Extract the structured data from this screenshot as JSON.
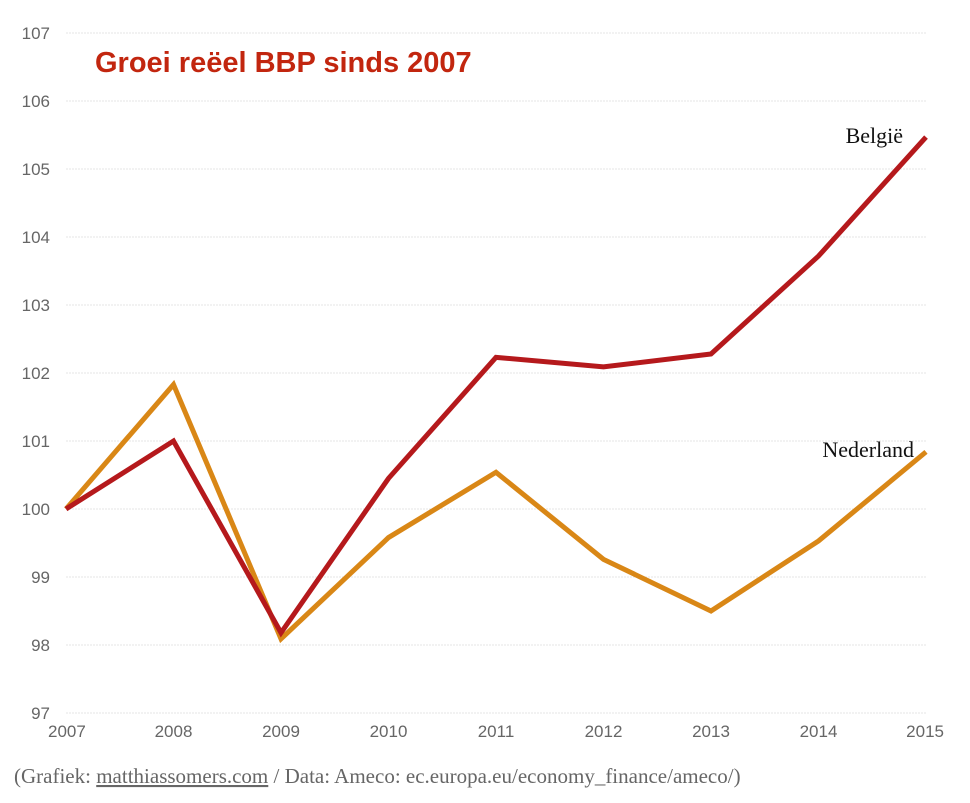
{
  "chart_data": {
    "type": "line",
    "title": "Groei reëel BBP sinds 2007",
    "x": [
      "2007",
      "2008",
      "2009",
      "2010",
      "2011",
      "2012",
      "2013",
      "2014",
      "2015"
    ],
    "ylim": [
      97,
      107
    ],
    "yticks": [
      "97",
      "98",
      "99",
      "100",
      "101",
      "102",
      "103",
      "104",
      "105",
      "106",
      "107"
    ],
    "grid": true,
    "series": [
      {
        "name": "België",
        "color": "#b5191c",
        "values": [
          100,
          101.0,
          98.18,
          100.45,
          102.23,
          102.09,
          102.28,
          103.72,
          105.47
        ]
      },
      {
        "name": "Nederland",
        "color": "#d98716",
        "values": [
          100,
          101.83,
          98.09,
          99.58,
          100.54,
          99.26,
          98.5,
          99.53,
          100.84
        ]
      }
    ]
  },
  "source": {
    "prefix": "(Grafiek: ",
    "link": "matthiassomers.com",
    "suffix": " / Data: Ameco: ec.europa.eu/economy_finance/ameco/)"
  }
}
